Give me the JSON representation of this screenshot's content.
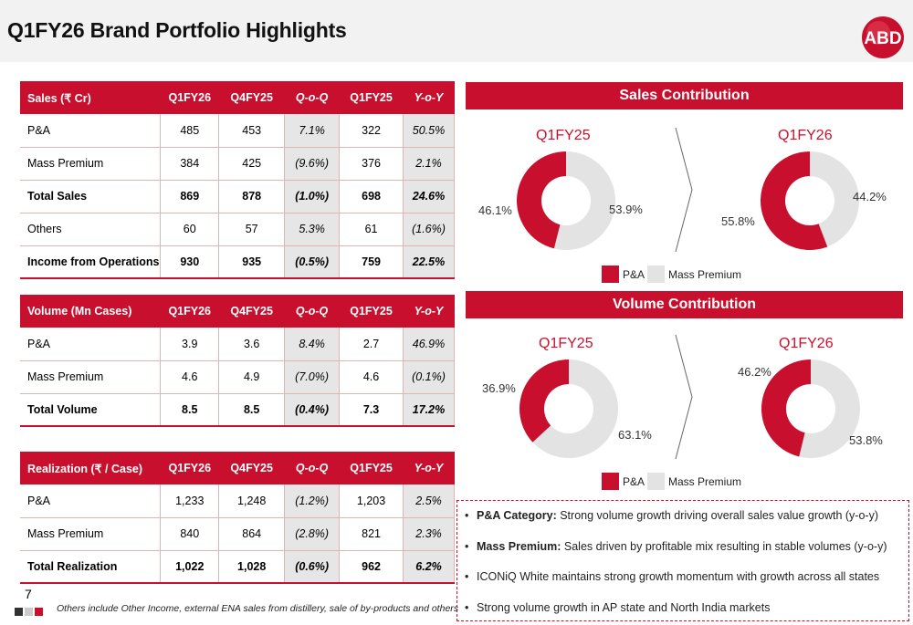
{
  "title": "Q1FY26 Brand Portfolio Highlights",
  "sales_table": {
    "headers": [
      "Sales (₹ Cr)",
      "Q1FY26",
      "Q4FY25",
      "Q-o-Q",
      "Q1FY25",
      "Y-o-Y"
    ],
    "rows": [
      [
        "P&A",
        "485",
        "453",
        "7.1%",
        "322",
        "50.5%"
      ],
      [
        "Mass Premium",
        "384",
        "425",
        "(9.6%)",
        "376",
        "2.1%"
      ],
      [
        "Total Sales",
        "869",
        "878",
        "(1.0%)",
        "698",
        "24.6%"
      ],
      [
        "Others",
        "60",
        "57",
        "5.3%",
        "61",
        "(1.6%)"
      ],
      [
        "Income from Operations",
        "930",
        "935",
        "(0.5%)",
        "759",
        "22.5%"
      ]
    ]
  },
  "volume_table": {
    "headers": [
      "Volume (Mn Cases)",
      "Q1FY26",
      "Q4FY25",
      "Q-o-Q",
      "Q1FY25",
      "Y-o-Y"
    ],
    "rows": [
      [
        "P&A",
        "3.9",
        "3.6",
        "8.4%",
        "2.7",
        "46.9%"
      ],
      [
        "Mass Premium",
        "4.6",
        "4.9",
        "(7.0%)",
        "4.6",
        "(0.1%)"
      ],
      [
        "Total Volume",
        "8.5",
        "8.5",
        "(0.4%)",
        "7.3",
        "17.2%"
      ]
    ]
  },
  "realization_table": {
    "headers": [
      "Realization (₹ / Case)",
      "Q1FY26",
      "Q4FY25",
      "Q-o-Q",
      "Q1FY25",
      "Y-o-Y"
    ],
    "rows": [
      [
        "P&A",
        "1,233",
        "1,248",
        "(1.2%)",
        "1,203",
        "2.5%"
      ],
      [
        "Mass Premium",
        "840",
        "864",
        "(2.8%)",
        "821",
        "2.3%"
      ],
      [
        "Total Realization",
        "1,022",
        "1,028",
        "(0.6%)",
        "962",
        "6.2%"
      ]
    ]
  },
  "sales_contribution": {
    "header": "Sales Contribution",
    "left_year": "Q1FY25",
    "right_year": "Q1FY26",
    "left_pa": "46.1%",
    "left_mp": "53.9%",
    "right_pa": "55.8%",
    "right_mp": "44.2%"
  },
  "volume_contribution": {
    "header": "Volume Contribution",
    "left_year": "Q1FY25",
    "right_year": "Q1FY26",
    "left_pa": "36.9%",
    "left_mp": "63.1%",
    "right_pa": "46.2%",
    "right_mp": "53.8%"
  },
  "legend": {
    "pa": "P&A",
    "mp": "Mass Premium"
  },
  "notes": [
    {
      "bold": "P&A Category:",
      "text": " Strong volume growth driving overall sales value growth (y-o-y)"
    },
    {
      "bold": "Mass Premium:",
      "text": " Sales driven by profitable mix resulting in stable volumes (y-o-y)"
    },
    {
      "bold": "",
      "text": "ICONiQ White maintains strong growth momentum with growth across all states"
    },
    {
      "bold": "",
      "text": "Strong volume growth in AP state and North India markets"
    }
  ],
  "page_number": "7",
  "footnote": "Others include Other Income, external ENA sales from distillery, sale of by-products and others",
  "colors": {
    "brand_red": "#c8102e",
    "grey": "#e3e3e3"
  },
  "chart_data": [
    {
      "type": "pie",
      "title": "Q1FY25",
      "categories": [
        "P&A",
        "Mass Premium"
      ],
      "values": [
        46.1,
        53.9
      ]
    },
    {
      "type": "pie",
      "title": "Q1FY26",
      "categories": [
        "P&A",
        "Mass Premium"
      ],
      "values": [
        55.8,
        44.2
      ]
    },
    {
      "type": "pie",
      "title": "Q1FY25",
      "categories": [
        "P&A",
        "Mass Premium"
      ],
      "values": [
        36.9,
        63.1
      ]
    },
    {
      "type": "pie",
      "title": "Q1FY26",
      "categories": [
        "P&A",
        "Mass Premium"
      ],
      "values": [
        46.2,
        53.8
      ]
    }
  ]
}
